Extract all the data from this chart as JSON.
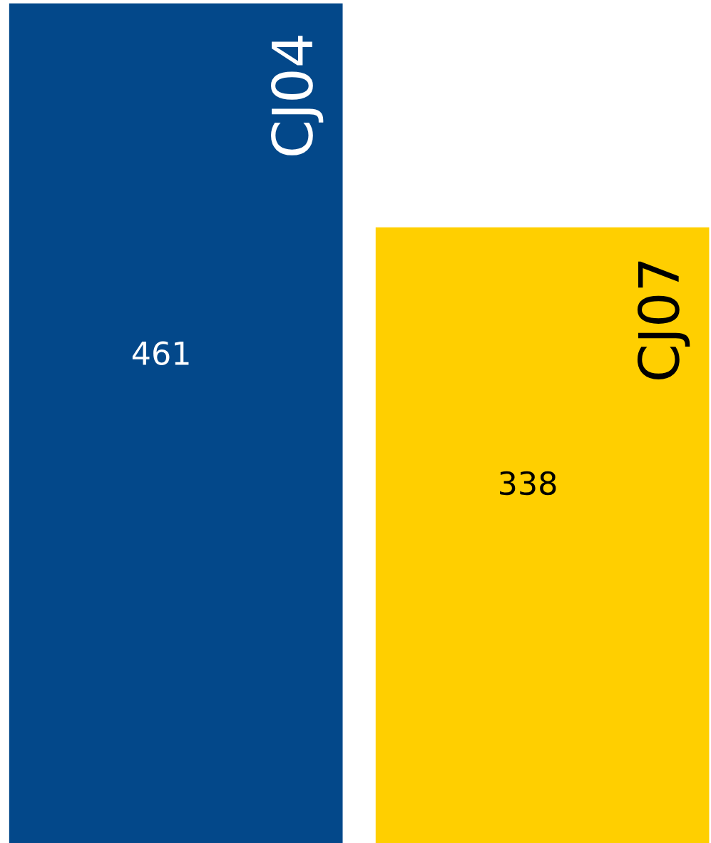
{
  "chart_data": {
    "type": "bar",
    "categories": [
      "CJ04",
      "CJ07"
    ],
    "values": [
      461,
      338
    ],
    "colors": [
      "#03488a",
      "#ffcf00"
    ],
    "data_labels": true
  }
}
